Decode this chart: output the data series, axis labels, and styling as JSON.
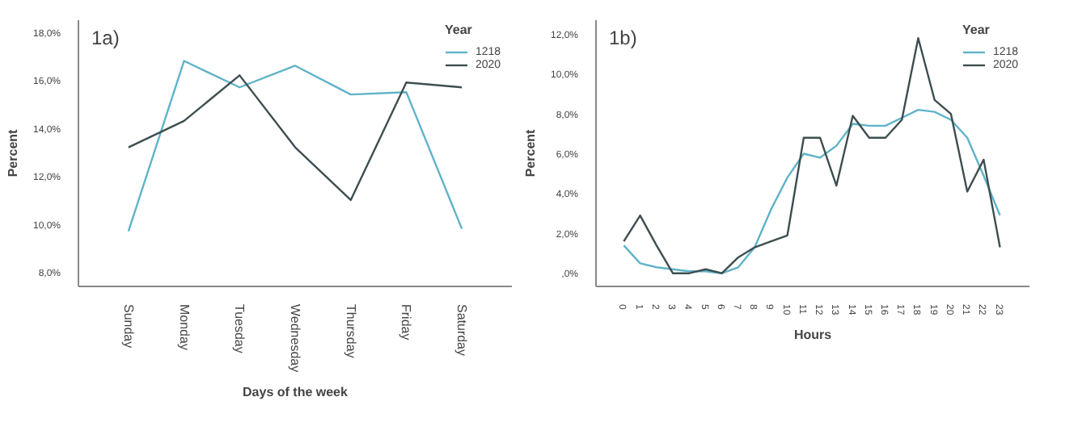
{
  "chart_data": [
    {
      "type": "line",
      "title": "1a)",
      "xlabel": "Days of the week",
      "ylabel": "Percent",
      "legend_title": "Year",
      "legend": "top right",
      "grid": false,
      "categories": [
        "Sunday",
        "Monday",
        "Tuesday",
        "Wednesday",
        "Thursday",
        "Friday",
        "Saturday"
      ],
      "ylim": [
        7.5,
        18.6
      ],
      "yticks": [
        {
          "value": 8,
          "label": "8,0%"
        },
        {
          "value": 10,
          "label": "10,0%"
        },
        {
          "value": 12,
          "label": "12,0%"
        },
        {
          "value": 14,
          "label": "14,0%"
        },
        {
          "value": 16,
          "label": "16,0%"
        },
        {
          "value": 18,
          "label": "18,0%"
        }
      ],
      "series": [
        {
          "name": "1218",
          "color": "#5fb3c8",
          "values": [
            9.8,
            16.9,
            15.8,
            16.7,
            15.5,
            15.6,
            9.9
          ]
        },
        {
          "name": "2020",
          "color": "#3d4e50",
          "values": [
            13.3,
            14.4,
            16.3,
            13.3,
            11.1,
            16.0,
            15.8
          ]
        }
      ]
    },
    {
      "type": "line",
      "title": "1b)",
      "xlabel": "Hours",
      "ylabel": "Percent",
      "legend_title": "Year",
      "legend": "top right",
      "grid": false,
      "x": [
        0,
        1,
        2,
        3,
        4,
        5,
        6,
        7,
        8,
        9,
        10,
        11,
        12,
        13,
        14,
        15,
        16,
        17,
        18,
        19,
        20,
        21,
        22,
        23
      ],
      "xlim": [
        -1.7,
        24.8
      ],
      "xticks": [
        0,
        1,
        2,
        3,
        4,
        5,
        6,
        7,
        8,
        9,
        10,
        11,
        12,
        13,
        14,
        15,
        16,
        17,
        18,
        19,
        20,
        21,
        22,
        23
      ],
      "ylim": [
        -0.56,
        12.8
      ],
      "yticks": [
        {
          "value": 0,
          "label": ",0%"
        },
        {
          "value": 2,
          "label": "2,0%"
        },
        {
          "value": 4,
          "label": "4,0%"
        },
        {
          "value": 6,
          "label": "6,0%"
        },
        {
          "value": 8,
          "label": "8,0%"
        },
        {
          "value": 10,
          "label": "10,0%"
        },
        {
          "value": 12,
          "label": "12,0%"
        }
      ],
      "series": [
        {
          "name": "1218",
          "color": "#5fb3c8",
          "values": [
            1.5,
            0.6,
            0.4,
            0.3,
            0.2,
            0.2,
            0.1,
            0.4,
            1.4,
            3.3,
            4.9,
            6.1,
            5.9,
            6.5,
            7.6,
            7.5,
            7.5,
            7.9,
            8.3,
            8.2,
            7.8,
            6.9,
            5.0,
            3.0
          ]
        },
        {
          "name": "2020",
          "color": "#3d4e50",
          "values": [
            1.7,
            3.0,
            1.5,
            0.1,
            0.1,
            0.3,
            0.1,
            0.9,
            1.4,
            1.7,
            2.0,
            6.9,
            6.9,
            4.5,
            8.0,
            6.9,
            6.9,
            7.8,
            11.9,
            8.8,
            8.1,
            4.2,
            5.8,
            1.4
          ]
        }
      ]
    }
  ]
}
